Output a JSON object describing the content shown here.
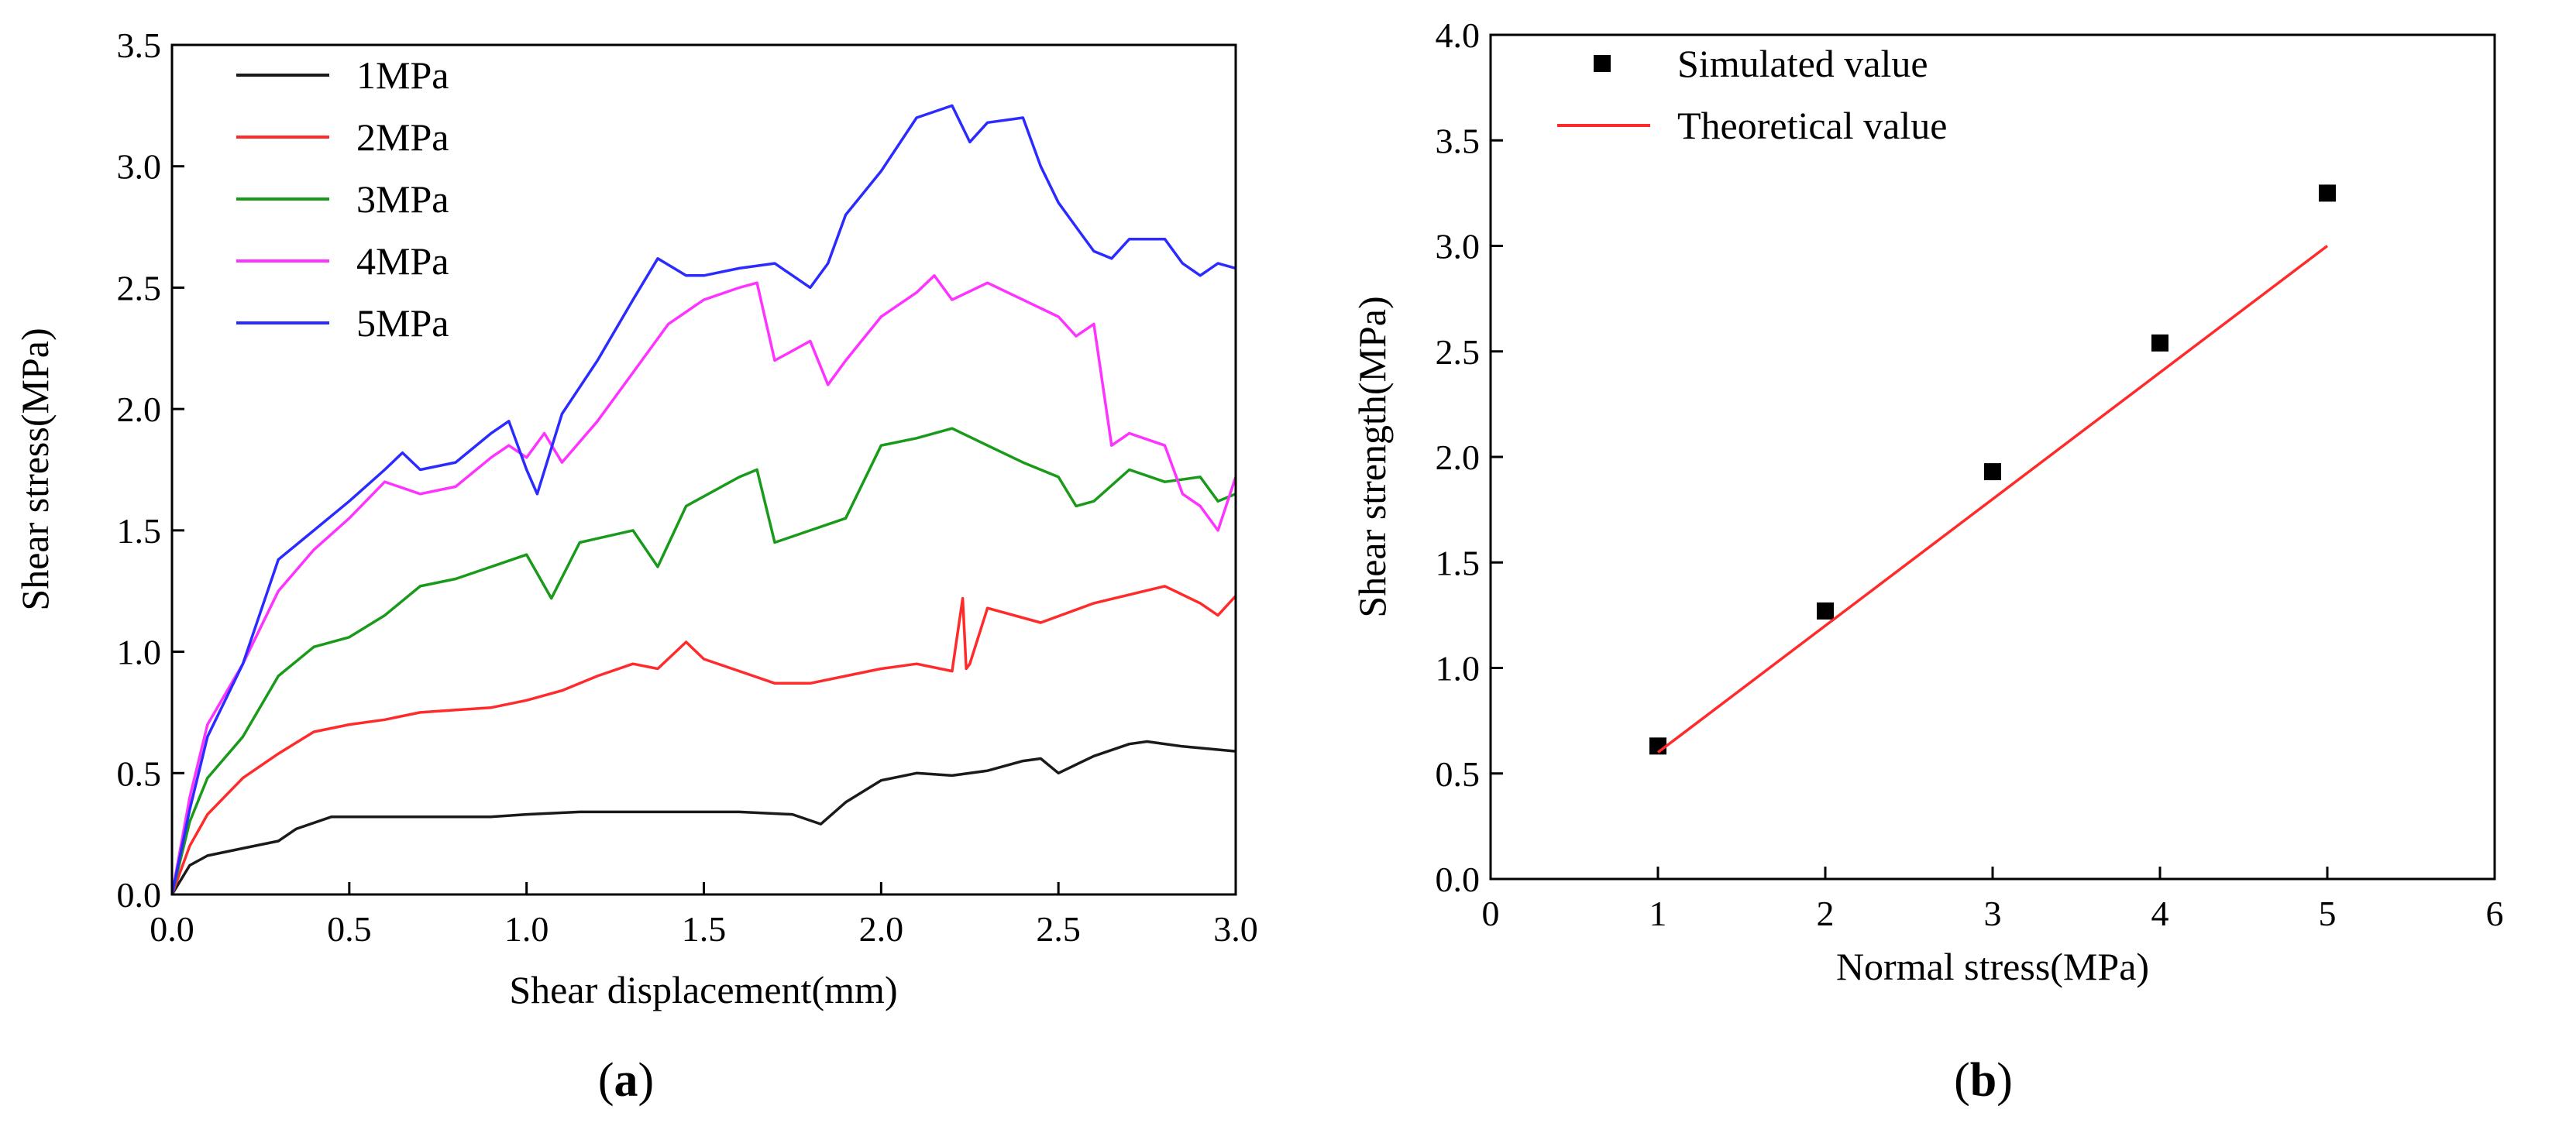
{
  "chart_data": [
    {
      "type": "line",
      "panel": "(a)",
      "panel_letter": "a",
      "xlabel": "Shear displacement(mm)",
      "ylabel": "Shear stress(MPa)",
      "xlim": [
        0.0,
        3.0
      ],
      "ylim": [
        0.0,
        3.5
      ],
      "xticks": [
        "0.0",
        "0.5",
        "1.0",
        "1.5",
        "2.0",
        "2.5",
        "3.0"
      ],
      "yticks": [
        "0.0",
        "0.5",
        "1.0",
        "1.5",
        "2.0",
        "2.5",
        "3.0",
        "3.5"
      ],
      "legend_position": "top-left",
      "series": [
        {
          "name": "1MPa",
          "color": "#1a1a1a",
          "x": [
            0,
            0.05,
            0.1,
            0.2,
            0.3,
            0.35,
            0.45,
            0.6,
            0.75,
            0.9,
            1.0,
            1.15,
            1.3,
            1.45,
            1.6,
            1.75,
            1.83,
            1.9,
            2.0,
            2.1,
            2.2,
            2.3,
            2.4,
            2.45,
            2.5,
            2.6,
            2.7,
            2.75,
            2.85,
            3.0
          ],
          "y": [
            0,
            0.12,
            0.16,
            0.19,
            0.22,
            0.27,
            0.32,
            0.32,
            0.32,
            0.32,
            0.33,
            0.34,
            0.34,
            0.34,
            0.34,
            0.33,
            0.29,
            0.38,
            0.47,
            0.5,
            0.49,
            0.51,
            0.55,
            0.56,
            0.5,
            0.57,
            0.62,
            0.63,
            0.61,
            0.59
          ]
        },
        {
          "name": "2MPa",
          "color": "#ff2b2b",
          "x": [
            0,
            0.05,
            0.1,
            0.2,
            0.3,
            0.4,
            0.5,
            0.6,
            0.7,
            0.8,
            0.9,
            1.0,
            1.1,
            1.2,
            1.3,
            1.37,
            1.45,
            1.5,
            1.6,
            1.7,
            1.8,
            1.9,
            2.0,
            2.1,
            2.2,
            2.23,
            2.24,
            2.25,
            2.3,
            2.45,
            2.6,
            2.8,
            2.9,
            2.95,
            3.0
          ],
          "y": [
            0,
            0.2,
            0.33,
            0.48,
            0.58,
            0.67,
            0.7,
            0.72,
            0.75,
            0.76,
            0.77,
            0.8,
            0.84,
            0.9,
            0.95,
            0.93,
            1.04,
            0.97,
            0.92,
            0.87,
            0.87,
            0.9,
            0.93,
            0.95,
            0.92,
            1.22,
            0.93,
            0.95,
            1.18,
            1.12,
            1.2,
            1.27,
            1.2,
            1.15,
            1.23
          ]
        },
        {
          "name": "3MPa",
          "color": "#1a9a1a",
          "x": [
            0,
            0.05,
            0.1,
            0.2,
            0.3,
            0.4,
            0.5,
            0.6,
            0.7,
            0.8,
            0.9,
            1.0,
            1.07,
            1.15,
            1.3,
            1.37,
            1.45,
            1.6,
            1.65,
            1.7,
            1.8,
            1.9,
            2.0,
            2.1,
            2.2,
            2.3,
            2.4,
            2.5,
            2.55,
            2.6,
            2.7,
            2.8,
            2.9,
            2.95,
            3.0
          ],
          "y": [
            0,
            0.3,
            0.48,
            0.65,
            0.9,
            1.02,
            1.06,
            1.15,
            1.27,
            1.3,
            1.35,
            1.4,
            1.22,
            1.45,
            1.5,
            1.35,
            1.6,
            1.72,
            1.75,
            1.45,
            1.5,
            1.55,
            1.85,
            1.88,
            1.92,
            1.85,
            1.78,
            1.72,
            1.6,
            1.62,
            1.75,
            1.7,
            1.72,
            1.62,
            1.65
          ]
        },
        {
          "name": "4MPa",
          "color": "#ff33ff",
          "x": [
            0,
            0.05,
            0.1,
            0.2,
            0.3,
            0.4,
            0.5,
            0.6,
            0.7,
            0.8,
            0.9,
            0.95,
            1.0,
            1.05,
            1.1,
            1.2,
            1.3,
            1.4,
            1.5,
            1.6,
            1.65,
            1.7,
            1.8,
            1.85,
            1.9,
            2.0,
            2.1,
            2.15,
            2.2,
            2.3,
            2.4,
            2.5,
            2.55,
            2.6,
            2.65,
            2.7,
            2.8,
            2.85,
            2.9,
            2.95,
            3.0
          ],
          "y": [
            0,
            0.4,
            0.7,
            0.95,
            1.25,
            1.42,
            1.55,
            1.7,
            1.65,
            1.68,
            1.8,
            1.85,
            1.8,
            1.9,
            1.78,
            1.95,
            2.15,
            2.35,
            2.45,
            2.5,
            2.52,
            2.2,
            2.28,
            2.1,
            2.2,
            2.38,
            2.48,
            2.55,
            2.45,
            2.52,
            2.45,
            2.38,
            2.3,
            2.35,
            1.85,
            1.9,
            1.85,
            1.65,
            1.6,
            1.5,
            1.72
          ]
        },
        {
          "name": "5MPa",
          "color": "#2b2bff",
          "x": [
            0,
            0.05,
            0.1,
            0.2,
            0.3,
            0.4,
            0.5,
            0.6,
            0.65,
            0.7,
            0.8,
            0.9,
            0.95,
            1.0,
            1.03,
            1.1,
            1.2,
            1.3,
            1.37,
            1.45,
            1.5,
            1.6,
            1.7,
            1.8,
            1.85,
            1.9,
            2.0,
            2.1,
            2.2,
            2.25,
            2.3,
            2.4,
            2.45,
            2.5,
            2.55,
            2.6,
            2.65,
            2.7,
            2.8,
            2.85,
            2.9,
            2.95,
            3.0
          ],
          "y": [
            0,
            0.35,
            0.65,
            0.95,
            1.38,
            1.5,
            1.62,
            1.75,
            1.82,
            1.75,
            1.78,
            1.9,
            1.95,
            1.75,
            1.65,
            1.98,
            2.2,
            2.45,
            2.62,
            2.55,
            2.55,
            2.58,
            2.6,
            2.5,
            2.6,
            2.8,
            2.98,
            3.2,
            3.25,
            3.1,
            3.18,
            3.2,
            3.0,
            2.85,
            2.75,
            2.65,
            2.62,
            2.7,
            2.7,
            2.6,
            2.55,
            2.6,
            2.58
          ]
        }
      ]
    },
    {
      "type": "scatter",
      "panel": "(b)",
      "panel_letter": "b",
      "xlabel": "Normal stress(MPa)",
      "ylabel": "Shear strength(MPa)",
      "xlim": [
        0,
        6
      ],
      "ylim": [
        0.0,
        4.0
      ],
      "xticks": [
        "0",
        "1",
        "2",
        "3",
        "4",
        "5",
        "6"
      ],
      "yticks": [
        "0.0",
        "0.5",
        "1.0",
        "1.5",
        "2.0",
        "2.5",
        "3.0",
        "3.5",
        "4.0"
      ],
      "legend_position": "top-left",
      "series": [
        {
          "name": "Simulated value",
          "kind": "scatter",
          "marker": "square",
          "color": "#000000",
          "x": [
            1,
            2,
            3,
            4,
            5
          ],
          "y": [
            0.63,
            1.27,
            1.93,
            2.54,
            3.25
          ]
        },
        {
          "name": "Theoretical value",
          "kind": "line",
          "color": "#ff2b2b",
          "x": [
            1,
            5
          ],
          "y": [
            0.6,
            3.0
          ]
        }
      ]
    }
  ]
}
